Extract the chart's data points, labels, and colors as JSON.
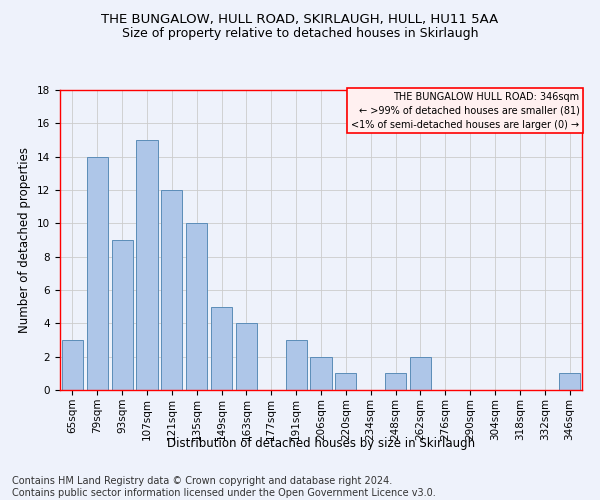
{
  "title": "THE BUNGALOW, HULL ROAD, SKIRLAUGH, HULL, HU11 5AA",
  "subtitle": "Size of property relative to detached houses in Skirlaugh",
  "xlabel": "Distribution of detached houses by size in Skirlaugh",
  "ylabel": "Number of detached properties",
  "categories": [
    "65sqm",
    "79sqm",
    "93sqm",
    "107sqm",
    "121sqm",
    "135sqm",
    "149sqm",
    "163sqm",
    "177sqm",
    "191sqm",
    "206sqm",
    "220sqm",
    "234sqm",
    "248sqm",
    "262sqm",
    "276sqm",
    "290sqm",
    "304sqm",
    "318sqm",
    "332sqm",
    "346sqm"
  ],
  "values": [
    3,
    14,
    9,
    15,
    12,
    10,
    5,
    4,
    0,
    3,
    2,
    1,
    0,
    1,
    2,
    0,
    0,
    0,
    0,
    0,
    1
  ],
  "bar_color": "#aec6e8",
  "bar_edge_color": "#5b8db8",
  "box_text_line1": "THE BUNGALOW HULL ROAD: 346sqm",
  "box_text_line2": "← >99% of detached houses are smaller (81)",
  "box_text_line3": "<1% of semi-detached houses are larger (0) →",
  "box_color": "#fff0f0",
  "box_edge_color": "red",
  "footer_line1": "Contains HM Land Registry data © Crown copyright and database right 2024.",
  "footer_line2": "Contains public sector information licensed under the Open Government Licence v3.0.",
  "ylim": [
    0,
    18
  ],
  "yticks": [
    0,
    2,
    4,
    6,
    8,
    10,
    12,
    14,
    16,
    18
  ],
  "grid_color": "#cccccc",
  "background_color": "#eef2fb",
  "title_fontsize": 9.5,
  "subtitle_fontsize": 9,
  "axis_label_fontsize": 8.5,
  "tick_fontsize": 7.5,
  "footer_fontsize": 7
}
